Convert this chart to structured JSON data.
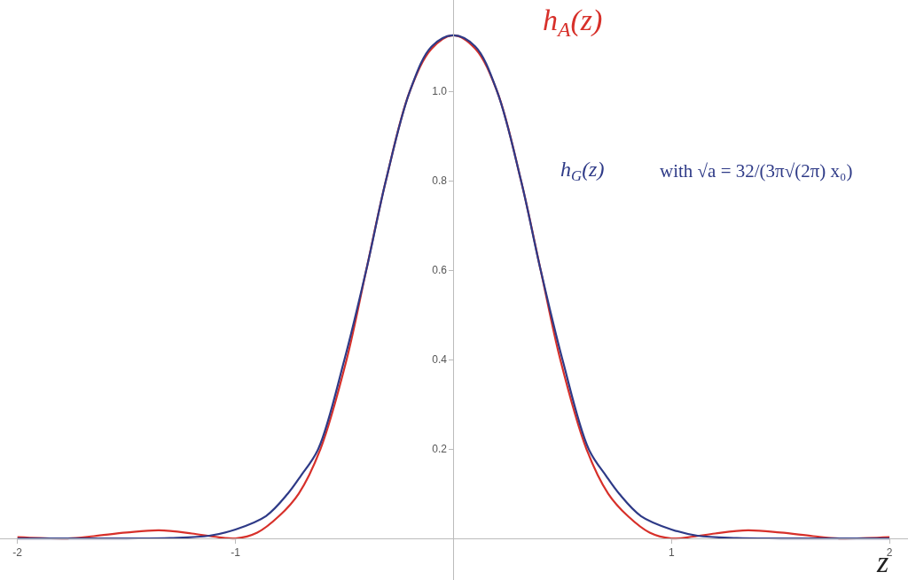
{
  "chart_data": {
    "type": "line",
    "xlabel": "z",
    "xlim": [
      -2.08,
      2.085
    ],
    "ylim": [
      -0.093,
      1.204
    ],
    "xticks": [
      -2,
      -1,
      1,
      2
    ],
    "yticks": [
      0.2,
      0.4,
      0.6,
      0.8,
      {
        "value": 1,
        "label": "1.0"
      }
    ],
    "legend": false,
    "marker": "none",
    "line_style": "solid",
    "series": [
      {
        "name": "h$_{A}$(z)",
        "color": "#d7302a",
        "x": [
          -2,
          -1.9,
          -1.77,
          -1.65,
          -1.5,
          -1.35,
          -1.2,
          -1.1,
          -1.0,
          -0.9,
          -0.8,
          -0.71,
          -0.61,
          -0.49,
          -0.4,
          -0.31,
          -0.2,
          -0.1,
          0,
          0.1,
          0.2,
          0.31,
          0.4,
          0.49,
          0.61,
          0.71,
          0.8,
          0.9,
          1.0,
          1.1,
          1.2,
          1.35,
          1.5,
          1.65,
          1.77,
          1.9,
          2
        ],
        "values": [
          0.003,
          0.001,
          0.0,
          0.005,
          0.013,
          0.018,
          0.011,
          0.004,
          0.0,
          0.013,
          0.05,
          0.1,
          0.2,
          0.4,
          0.6,
          0.8,
          1.0,
          1.095,
          1.125,
          1.095,
          1.0,
          0.8,
          0.6,
          0.4,
          0.2,
          0.1,
          0.05,
          0.013,
          0.0,
          0.004,
          0.011,
          0.018,
          0.013,
          0.005,
          0.0,
          0.001,
          0.003
        ]
      },
      {
        "name": "h$_{G}$(z)",
        "color": "#2e3a87",
        "x": [
          -2,
          -1.5,
          -1.3,
          -1.12,
          -1.0,
          -0.86,
          -0.76,
          -0.7,
          -0.62,
          -0.5,
          -0.4,
          -0.31,
          -0.2,
          -0.1,
          0,
          0.1,
          0.2,
          0.31,
          0.4,
          0.5,
          0.62,
          0.7,
          0.76,
          0.86,
          1.0,
          1.12,
          1.3,
          1.5,
          2
        ],
        "values": [
          0,
          0,
          0.001,
          0.006,
          0.02,
          0.05,
          0.1,
          0.14,
          0.2,
          0.4,
          0.6,
          0.8,
          1.0,
          1.1,
          1.125,
          1.1,
          1.0,
          0.8,
          0.6,
          0.4,
          0.2,
          0.14,
          0.1,
          0.05,
          0.02,
          0.006,
          0.001,
          0,
          0
        ]
      }
    ],
    "annotations": [
      "with √a = 32/(3π√(2π) x₀)"
    ]
  }
}
